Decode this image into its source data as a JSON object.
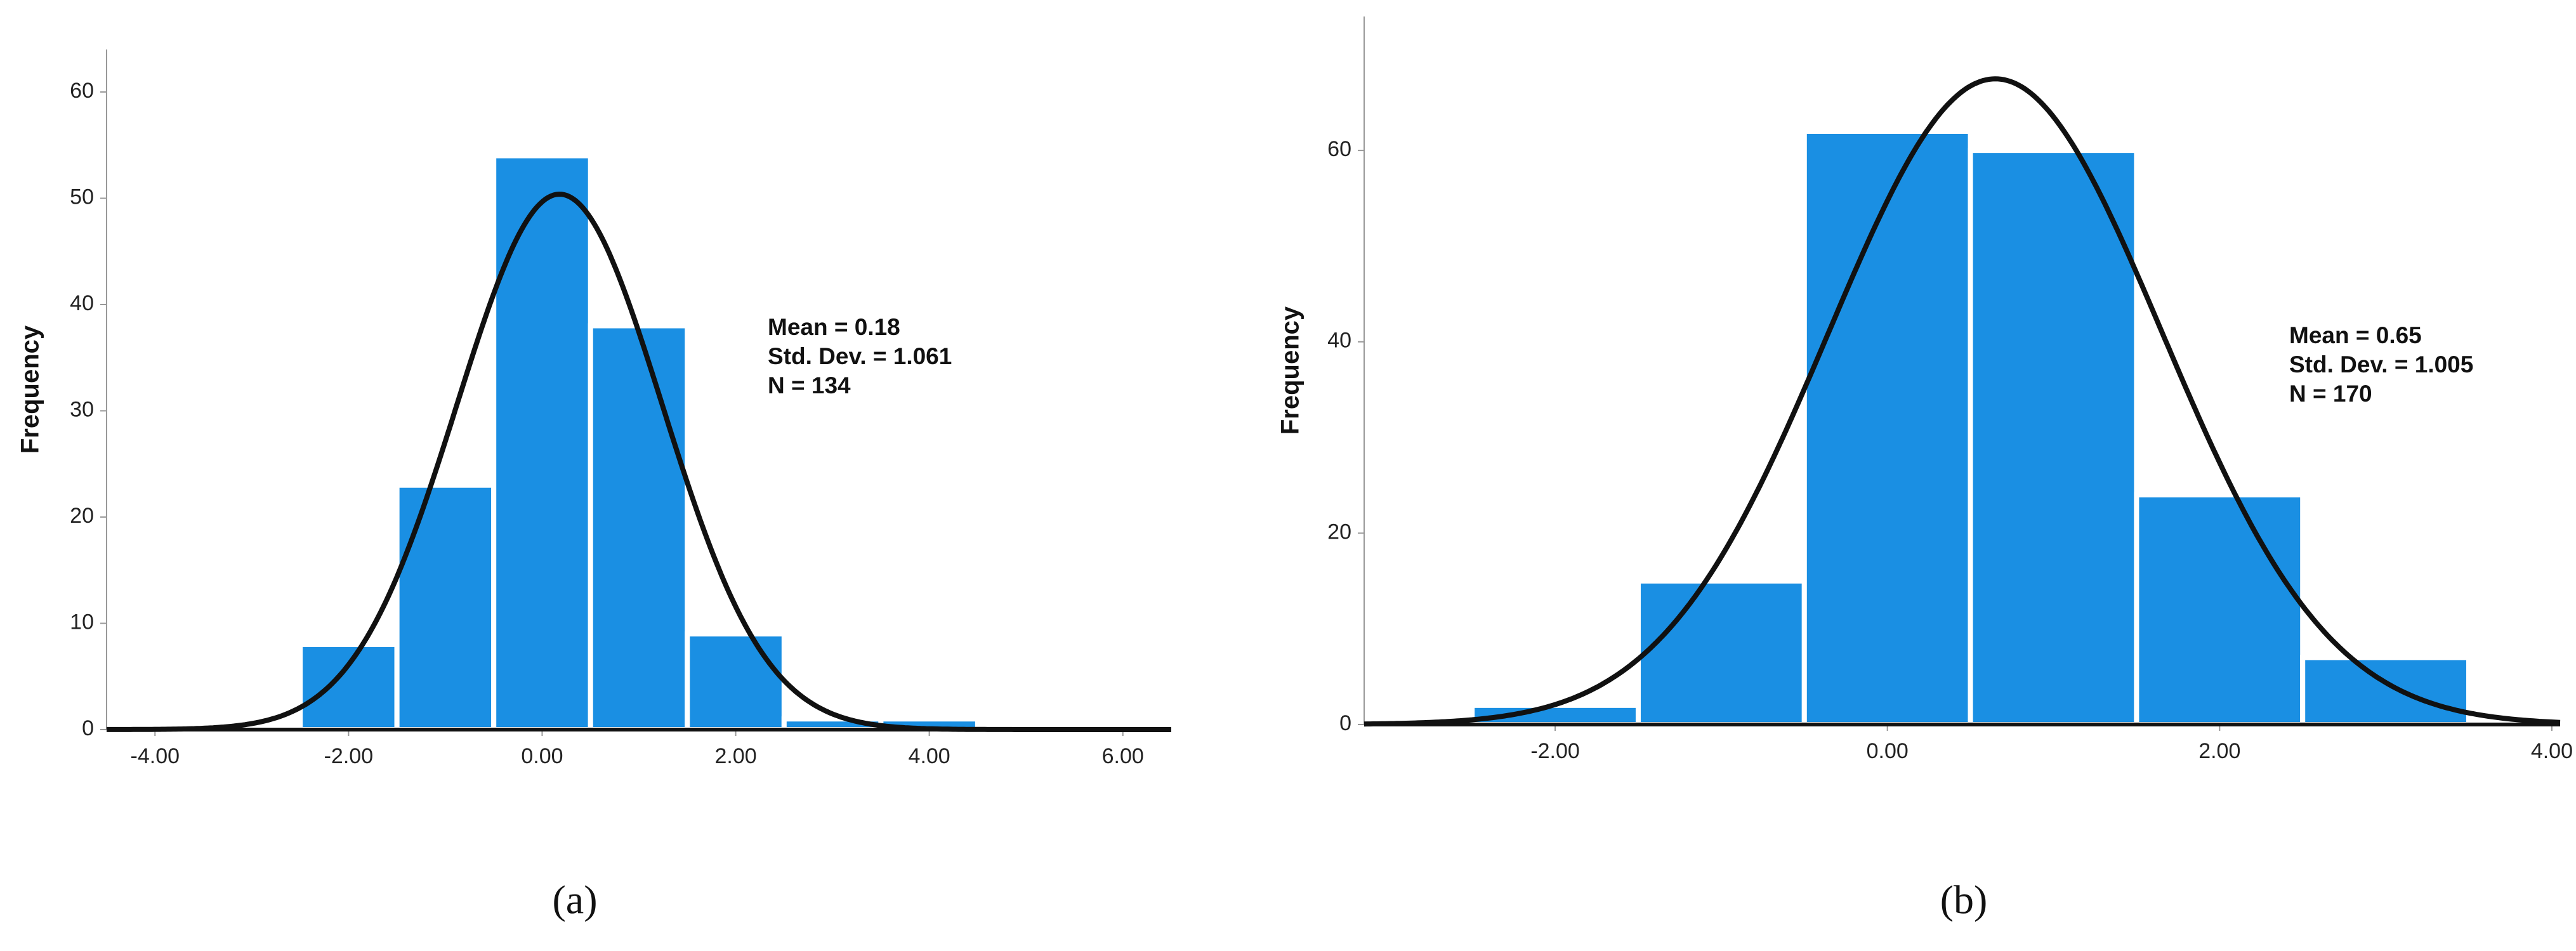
{
  "chart_data": [
    {
      "type": "histogram",
      "caption": "(a)",
      "y_label": "Frequency",
      "bins": [
        -2.5,
        -1.5,
        -0.5,
        0.5,
        1.5,
        2.5,
        3.5,
        4.5
      ],
      "values": [
        8,
        23,
        54,
        38,
        9,
        1,
        1
      ],
      "color": "#1a8fe3",
      "xlim": [
        -4.5,
        6.5
      ],
      "ylim": [
        0,
        64
      ],
      "xticks": [
        {
          "value": -4,
          "label": "-4.00"
        },
        {
          "value": -2,
          "label": "-2.00"
        },
        {
          "value": 0,
          "label": "0.00"
        },
        {
          "value": 2,
          "label": "2.00"
        },
        {
          "value": 4,
          "label": "4.00"
        },
        {
          "value": 6,
          "label": "6.00"
        }
      ],
      "yticks": [
        0,
        10,
        20,
        30,
        40,
        50,
        60
      ],
      "stats": [
        {
          "value": 0.18,
          "label": "Mean = 0.18"
        },
        {
          "value": 1.061,
          "label": "Std. Dev. = 1.061"
        },
        {
          "value": 134,
          "label": "N = 134"
        }
      ]
    },
    {
      "type": "histogram",
      "caption": "(b)",
      "y_label": "Frequency",
      "bins": [
        -2.5,
        -1.5,
        -0.5,
        0.5,
        1.5,
        2.5,
        3.5
      ],
      "values": [
        2,
        15,
        62,
        60,
        24,
        7
      ],
      "color": "#1a8fe3",
      "xlim": [
        -3.15,
        4.05
      ],
      "ylim": [
        0,
        74
      ],
      "xticks": [
        {
          "value": -2,
          "label": "-2.00"
        },
        {
          "value": 0,
          "label": "0.00"
        },
        {
          "value": 2,
          "label": "2.00"
        },
        {
          "value": 4,
          "label": "4.00"
        }
      ],
      "yticks": [
        0,
        20,
        40,
        60
      ],
      "stats": [
        {
          "value": 0.65,
          "label": "Mean = 0.65"
        },
        {
          "value": 1.005,
          "label": "Std. Dev. = 1.005"
        },
        {
          "value": 170,
          "label": "N = 170"
        }
      ]
    }
  ]
}
